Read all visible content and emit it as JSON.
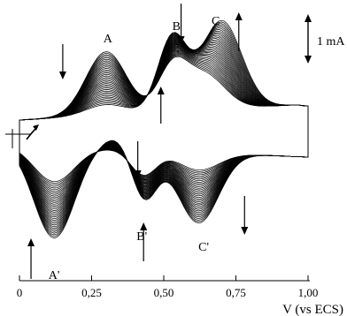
{
  "chart_data": {
    "type": "line",
    "title": "",
    "xlabel": "V (vs ECS)",
    "ylabel": "",
    "xlim": [
      0,
      1.0
    ],
    "x_ticks": [
      0,
      0.25,
      0.5,
      0.75,
      1.0
    ],
    "x_tick_labels": [
      "0",
      "0,25",
      "0,50",
      "0,75",
      "1,00"
    ],
    "grid": false,
    "legend": "none",
    "scale_bar_label": "1 mA",
    "scale_bar_value_mA": 1,
    "scan_start_potential": 0.0,
    "scan_end_potential": 1.0,
    "series_count": 36,
    "series_note_visible": "",
    "peak_labels": [
      {
        "label": "A",
        "x": 0.3,
        "branch": "anodic"
      },
      {
        "label": "B",
        "x": 0.55,
        "branch": "anodic"
      },
      {
        "label": "C",
        "x": 0.68,
        "branch": "anodic"
      },
      {
        "label": "A'",
        "x": 0.12,
        "branch": "cathodic"
      },
      {
        "label": "B'",
        "x": 0.43,
        "branch": "cathodic"
      },
      {
        "label": "C'",
        "x": 0.62,
        "branch": "cathodic"
      }
    ],
    "trend_arrows": [
      {
        "x": 0.15,
        "direction": "down",
        "branch": "anodic"
      },
      {
        "x": 0.56,
        "direction": "down",
        "branch": "anodic"
      },
      {
        "x": 0.76,
        "direction": "up",
        "branch": "anodic"
      },
      {
        "x": 0.49,
        "direction": "up",
        "branch": "anodic"
      },
      {
        "x": 0.41,
        "direction": "down",
        "branch": "cathodic"
      },
      {
        "x": 0.78,
        "direction": "down",
        "branch": "cathodic"
      },
      {
        "x": 0.43,
        "direction": "up",
        "branch": "cathodic"
      },
      {
        "x": 0.04,
        "direction": "up",
        "branch": "cathodic"
      }
    ],
    "current_range_mA": [
      -2.5,
      2.5
    ],
    "first_cycle_peaks_mA": {
      "A": 1.8,
      "B": 1.2,
      "C": 1.0,
      "A'": -1.0,
      "B'": -0.7,
      "C'": -0.5
    },
    "last_cycle_peaks_mA": {
      "A": 0.3,
      "B": 2.1,
      "C": 2.5,
      "A'": -2.6,
      "B'": -1.5,
      "C'": -2.0
    }
  }
}
